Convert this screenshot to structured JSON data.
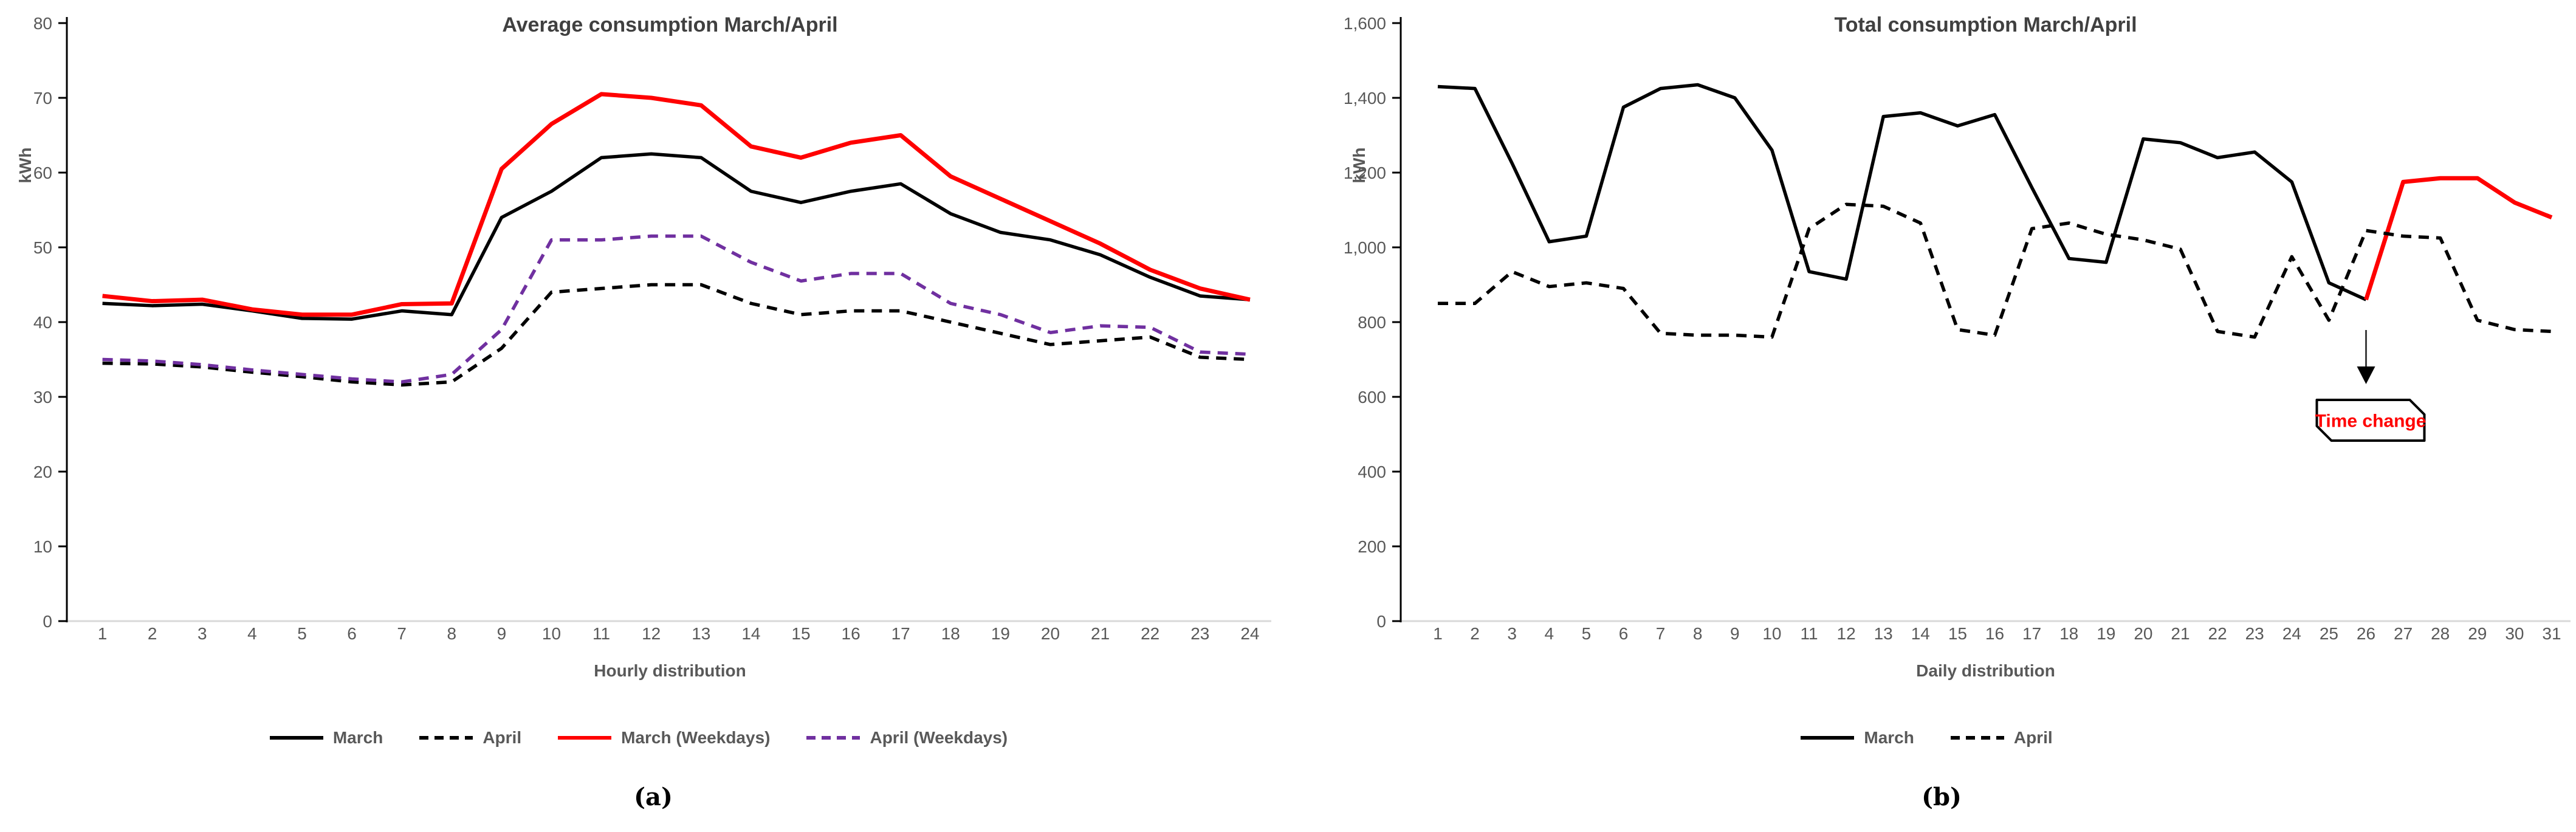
{
  "figure": {
    "panel_labels": [
      "(a)",
      "(b)"
    ]
  },
  "colors": {
    "march": "#000000",
    "april": "#000000",
    "march_weekdays": "#FF0000",
    "april_weekdays": "#7030A0",
    "axis_text": "#595959",
    "title_text": "#404040",
    "x_axis_line": "#D9D9D9",
    "annotation_text": "#FF0000"
  },
  "chart_data": [
    {
      "type": "line",
      "title": "Average consumption March/April",
      "xlabel": "Hourly distribution",
      "ylabel": "kWh",
      "ylim": [
        0,
        80
      ],
      "ytick_step": 10,
      "grid": false,
      "legend_position": "bottom",
      "x": [
        1,
        2,
        3,
        4,
        5,
        6,
        7,
        8,
        9,
        10,
        11,
        12,
        13,
        14,
        15,
        16,
        17,
        18,
        19,
        20,
        21,
        22,
        23,
        24
      ],
      "series": [
        {
          "name": "March",
          "color": "#000000",
          "dash": "solid",
          "values": [
            42.5,
            42.2,
            42.4,
            41.5,
            40.5,
            40.4,
            41.5,
            41,
            54,
            57.5,
            62,
            62.5,
            62,
            57.5,
            56,
            57.5,
            58.5,
            54.5,
            52,
            51,
            49,
            46,
            43.5,
            43
          ]
        },
        {
          "name": "April",
          "color": "#000000",
          "dash": "dashed",
          "values": [
            34.5,
            34.4,
            34,
            33.3,
            32.7,
            32,
            31.6,
            32,
            36.5,
            44,
            44.5,
            45,
            45,
            42.5,
            41,
            41.5,
            41.5,
            40,
            38.5,
            37,
            37.5,
            38,
            35.3,
            35
          ]
        },
        {
          "name": "March (Weekdays)",
          "color": "#FF0000",
          "dash": "solid",
          "values": [
            43.5,
            42.8,
            43,
            41.7,
            41,
            41,
            42.4,
            42.5,
            60.5,
            66.5,
            70.5,
            70,
            69,
            63.5,
            62,
            64,
            65,
            59.5,
            56.5,
            53.5,
            50.5,
            47,
            44.5,
            43
          ]
        },
        {
          "name": "April (Weekdays)",
          "color": "#7030A0",
          "dash": "dashed",
          "values": [
            35,
            34.8,
            34.3,
            33.6,
            33,
            32.4,
            32,
            33,
            39,
            51,
            51,
            51.5,
            51.5,
            48,
            45.5,
            46.5,
            46.5,
            42.5,
            41,
            38.6,
            39.5,
            39.3,
            36,
            35.7
          ]
        }
      ]
    },
    {
      "type": "line",
      "title": "Total consumption March/April",
      "xlabel": "Daily distribution",
      "ylabel": "kWh",
      "ylim": [
        0,
        1600
      ],
      "ytick_step": 200,
      "grid": false,
      "legend_position": "bottom",
      "x": [
        1,
        2,
        3,
        4,
        5,
        6,
        7,
        8,
        9,
        10,
        11,
        12,
        13,
        14,
        15,
        16,
        17,
        18,
        19,
        20,
        21,
        22,
        23,
        24,
        25,
        26,
        27,
        28,
        29,
        30,
        31
      ],
      "series": [
        {
          "name": "March",
          "color": "#000000",
          "dash": "solid",
          "color_switch": {
            "from_x": 26,
            "color": "#FF0000"
          },
          "values": [
            1430,
            1425,
            1225,
            1015,
            1030,
            1375,
            1425,
            1435,
            1400,
            1260,
            935,
            915,
            1350,
            1360,
            1325,
            1355,
            1160,
            970,
            960,
            1290,
            1280,
            1240,
            1255,
            1175,
            905,
            860,
            1175,
            1185,
            1185,
            1120,
            1080
          ]
        },
        {
          "name": "April",
          "color": "#000000",
          "dash": "dashed",
          "values": [
            850,
            850,
            935,
            895,
            905,
            890,
            770,
            765,
            765,
            760,
            1050,
            1115,
            1110,
            1065,
            780,
            765,
            1050,
            1065,
            1035,
            1020,
            995,
            775,
            760,
            975,
            805,
            1045,
            1030,
            1025,
            805,
            780,
            775
          ]
        }
      ],
      "annotation": {
        "label": "Time change",
        "at_x": 26
      }
    }
  ]
}
